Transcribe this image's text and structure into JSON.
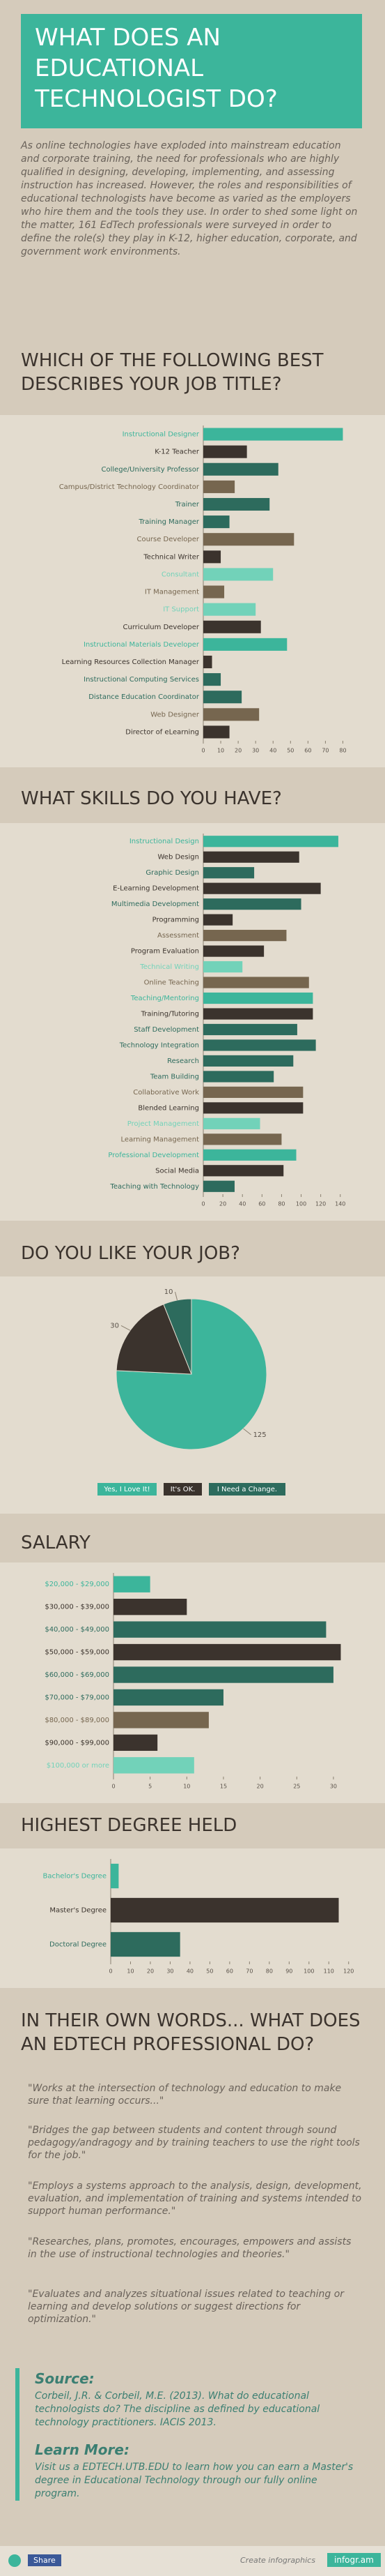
{
  "header": {
    "title": "WHAT DOES AN EDUCATIONAL TECHNOLOGIST DO?"
  },
  "intro": "As online technologies have exploded into mainstream education and corporate training, the need for professionals who are highly qualified in designing, developing, implementing, and assessing instruction has increased. However, the roles and responsibilities of educational technologists have become as varied as the employers who hire them and the tools they use. In order to shed some light on the matter, 161 EdTech professionals were surveyed in order to define the role(s) they play in K-12, higher education, corporate, and government work environments.",
  "chart_data": [
    {
      "type": "barh",
      "title": "WHICH OF THE FOLLOWING BEST DESCRIBES YOUR JOB TITLE?",
      "categories": [
        "Instructional Designer",
        "K-12 Teacher",
        "College/University Professor",
        "Campus/District Technology Coordinator",
        "Trainer",
        "Training Manager",
        "Course Developer",
        "Technical Writer",
        "Consultant",
        "IT Management",
        "IT Support",
        "Curriculum Developer",
        "Instructional Materials Developer",
        "Learning Resources Collection Manager",
        "Instructional Computing Services",
        "Distance Education Coordinator",
        "Web Designer",
        "Director of eLearning"
      ],
      "values": [
        80,
        25,
        43,
        18,
        38,
        15,
        52,
        10,
        40,
        12,
        30,
        33,
        48,
        5,
        10,
        22,
        32,
        15
      ],
      "colors": [
        "#3cb59b",
        "#3b332d",
        "#2d6b5d",
        "#76664f",
        "#2d6b5d",
        "#2d6b5d",
        "#76664f",
        "#3b332d",
        "#72d2b9",
        "#76664f",
        "#72d2b9",
        "#3b332d",
        "#3cb59b",
        "#3b332d",
        "#2d6b5d",
        "#2d6b5d",
        "#76664f",
        "#3b332d"
      ],
      "xlim": [
        0,
        85
      ],
      "xticks": [
        0,
        10,
        20,
        30,
        40,
        50,
        60,
        70,
        80
      ]
    },
    {
      "type": "barh",
      "title": "WHAT SKILLS DO YOU HAVE?",
      "categories": [
        "Instructional Design",
        "Web Design",
        "Graphic Design",
        "E-Learning Development",
        "Multimedia Development",
        "Programming",
        "Assessment",
        "Program Evaluation",
        "Technical Writing",
        "Online Teaching",
        "Teaching/Mentoring",
        "Training/Tutoring",
        "Staff Development",
        "Technology Integration",
        "Research",
        "Team Building",
        "Collaborative Work",
        "Blended Learning",
        "Project Management",
        "Learning Management",
        "Professional Development",
        "Social Media",
        "Teaching with Technology"
      ],
      "values": [
        138,
        98,
        52,
        120,
        100,
        30,
        85,
        62,
        40,
        108,
        112,
        112,
        96,
        115,
        92,
        72,
        102,
        102,
        58,
        80,
        95,
        82,
        32
      ],
      "colors": [
        "#3cb59b",
        "#3b332d",
        "#2d6b5d",
        "#3b332d",
        "#2d6b5d",
        "#3b332d",
        "#76664f",
        "#3b332d",
        "#72d2b9",
        "#76664f",
        "#3cb59b",
        "#3b332d",
        "#2d6b5d",
        "#2d6b5d",
        "#2d6b5d",
        "#2d6b5d",
        "#76664f",
        "#3b332d",
        "#72d2b9",
        "#76664f",
        "#3cb59b",
        "#3b332d",
        "#2d6b5d"
      ],
      "xlim": [
        0,
        148
      ],
      "xticks": [
        0,
        20,
        40,
        60,
        80,
        100,
        120,
        140
      ]
    },
    {
      "type": "pie",
      "title": "DO YOU LIKE YOUR JOB?",
      "categories": [
        "Yes, I Love It!",
        "It's OK.",
        "I Need a Change."
      ],
      "values": [
        125,
        30,
        10
      ],
      "colors": [
        "#3cb59b",
        "#3b332d",
        "#2d6b5d"
      ]
    },
    {
      "type": "barh",
      "title": "SALARY",
      "categories": [
        "$20,000 - $29,000",
        "$30,000 - $39,000",
        "$40,000 - $49,000",
        "$50,000 - $59,000",
        "$60,000 - $69,000",
        "$70,000 - $79,000",
        "$80,000 - $89,000",
        "$90,000 - $99,000",
        "$100,000 or more"
      ],
      "values": [
        5,
        10,
        29,
        31,
        30,
        15,
        13,
        6,
        11
      ],
      "colors": [
        "#3cb59b",
        "#3b332d",
        "#2d6b5d",
        "#3b332d",
        "#2d6b5d",
        "#2d6b5d",
        "#76664f",
        "#3b332d",
        "#72d2b9"
      ],
      "xlim": [
        0,
        32
      ],
      "xticks": [
        0,
        5,
        10,
        15,
        20,
        25,
        30
      ]
    },
    {
      "type": "barh",
      "title": "HIGHEST DEGREE HELD",
      "categories": [
        "Bachelor's Degree",
        "Master's Degree",
        "Doctoral Degree"
      ],
      "values": [
        4,
        115,
        35
      ],
      "colors": [
        "#3cb59b",
        "#3b332d",
        "#2d6b5d"
      ],
      "xlim": [
        0,
        125
      ],
      "xticks": [
        0,
        10,
        20,
        30,
        40,
        50,
        60,
        70,
        80,
        90,
        100,
        110,
        120
      ]
    }
  ],
  "words": {
    "title": "IN THEIR OWN WORDS... WHAT DOES AN EDTECH PROFESSIONAL DO?",
    "quotes": [
      "\"Works at the intersection of technology and education to make sure that learning occurs...\"",
      "\"Bridges the gap between students and content through sound pedagogy/andragogy and by training teachers to use the right tools for the job.\"",
      "\"Employs a systems approach to the analysis, design, development, evaluation, and implementation of training and systems intended to support human performance.\"",
      "\"Researches, plans, promotes, encourages, empowers and assists in the use of instructional technologies and theories.\"",
      "\"Evaluates and analyzes situational issues related to teaching or learning and develop solutions or suggest directions for optimization.\""
    ]
  },
  "source": {
    "title": "Source:",
    "text": "Corbeil, J.R. & Corbeil, M.E. (2013). What do educational technologists do? The discipline as defined by educational technology practitioners. IACIS 2013."
  },
  "learn_more": {
    "title": "Learn More:",
    "text": "Visit us a EDTECH.UTB.EDU to learn how you can earn a Master's degree in Educational Technology through our fully online program."
  },
  "footer": {
    "share": "Share",
    "create": "Create infographics",
    "brand": "infogr.am"
  }
}
